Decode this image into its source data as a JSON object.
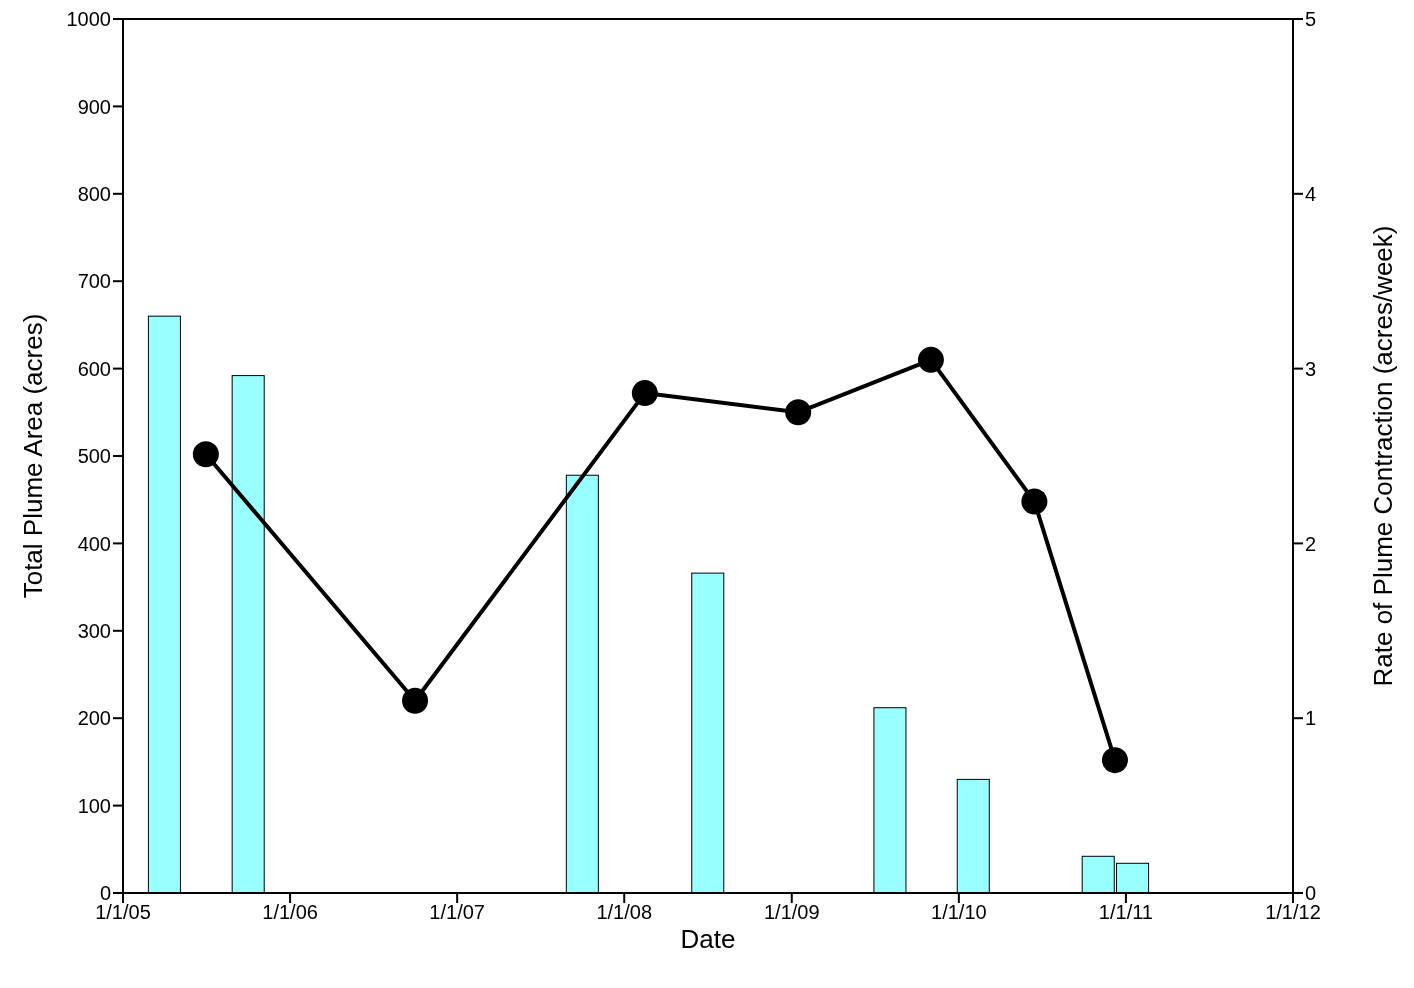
{
  "chart_data": {
    "type": "bar",
    "xlabel": "Date",
    "ylabel": "Total Plume Area (acres)",
    "y2label": "Rate of Plume Contraction (acres/week)",
    "xlim": [
      "2005-01-01",
      "2012-01-01"
    ],
    "xticks": [
      {
        "value": "2005-01-01",
        "label": "1/1/05"
      },
      {
        "value": "2006-01-01",
        "label": "1/1/06"
      },
      {
        "value": "2007-01-01",
        "label": "1/1/07"
      },
      {
        "value": "2008-01-01",
        "label": "1/1/08"
      },
      {
        "value": "2009-01-01",
        "label": "1/1/09"
      },
      {
        "value": "2010-01-01",
        "label": "1/1/10"
      },
      {
        "value": "2011-01-01",
        "label": "1/1/11"
      },
      {
        "value": "2012-01-01",
        "label": "1/1/12"
      }
    ],
    "ylim": [
      0,
      1000
    ],
    "yticks": [
      0,
      100,
      200,
      300,
      400,
      500,
      600,
      700,
      800,
      900,
      1000
    ],
    "y2lim": [
      0,
      5
    ],
    "y2ticks": [
      0,
      1,
      2,
      3,
      4,
      5
    ],
    "grid": false,
    "series": [
      {
        "color": "#99ffff",
        "x": [
          "2005-04-01",
          "2005-10-01",
          "2007-10-01",
          "2008-07-01",
          "2009-08-03",
          "2010-02-01",
          "2010-11-01",
          "2011-01-15"
        ],
        "values": [
          660,
          592,
          478,
          366,
          212,
          130,
          42,
          34
        ]
      },
      {
        "type": "line",
        "axis": "y2",
        "color": "#000000",
        "marker": "circle",
        "line_style": "solid",
        "x": [
          "2005-07-01",
          "2006-10-01",
          "2008-02-15",
          "2009-01-15",
          "2009-11-01",
          "2010-06-15",
          "2010-12-08"
        ],
        "values": [
          2.51,
          1.1,
          2.86,
          2.75,
          3.05,
          2.24,
          0.76
        ]
      }
    ]
  }
}
